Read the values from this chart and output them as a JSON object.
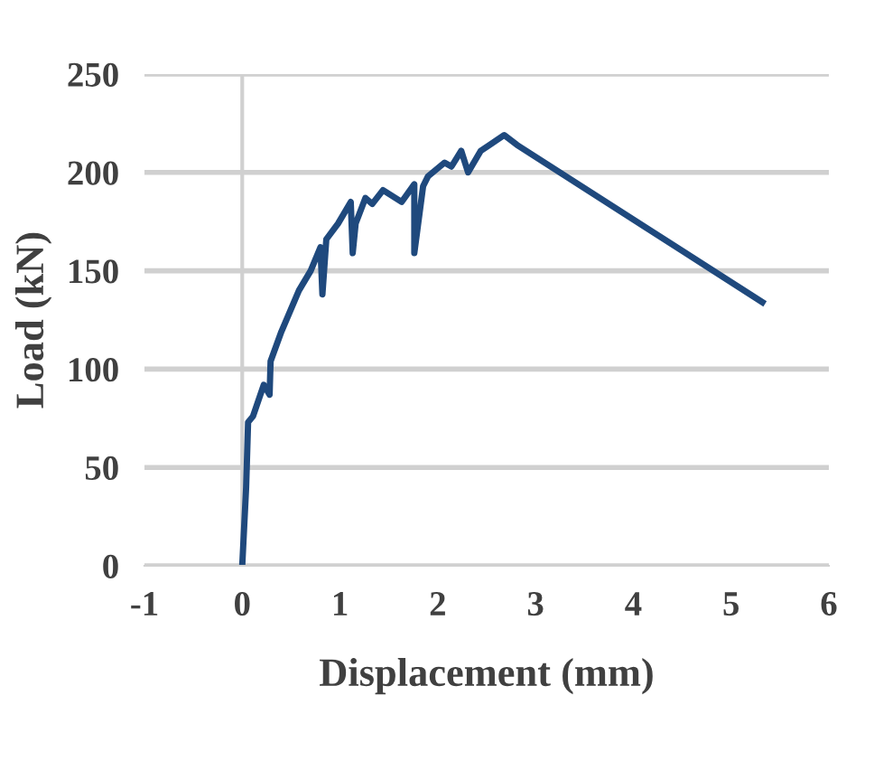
{
  "chart_data": {
    "type": "line",
    "xlabel": "Displacement (mm)",
    "ylabel": "Load (kN)",
    "xlim": [
      -1,
      6
    ],
    "xticks": [
      -1,
      0,
      1,
      2,
      3,
      4,
      5,
      6
    ],
    "ylim": [
      0,
      250
    ],
    "yticks": [
      0,
      50,
      100,
      150,
      200,
      250
    ],
    "grid": "y",
    "marker": "none",
    "line_style": "solid",
    "legend": false,
    "series": [
      {
        "color": "#1f497d",
        "x": [
          0,
          0.04,
          0.06,
          0.11,
          0.22,
          0.28,
          0.29,
          0.4,
          0.58,
          0.7,
          0.8,
          0.82,
          0.86,
          0.98,
          1.11,
          1.13,
          1.16,
          1.26,
          1.33,
          1.44,
          1.63,
          1.76,
          1.76,
          1.85,
          1.9,
          2.07,
          2.14,
          2.24,
          2.31,
          2.44,
          2.53,
          2.68,
          2.81,
          5.32
        ],
        "values": [
          0,
          40,
          73,
          76,
          92,
          87,
          104,
          119,
          140,
          150,
          162,
          138,
          166,
          174,
          185,
          159,
          174,
          187,
          184,
          191,
          185,
          194,
          159,
          193,
          198,
          205,
          203,
          211,
          200,
          211,
          214,
          219,
          214,
          134
        ]
      }
    ]
  }
}
